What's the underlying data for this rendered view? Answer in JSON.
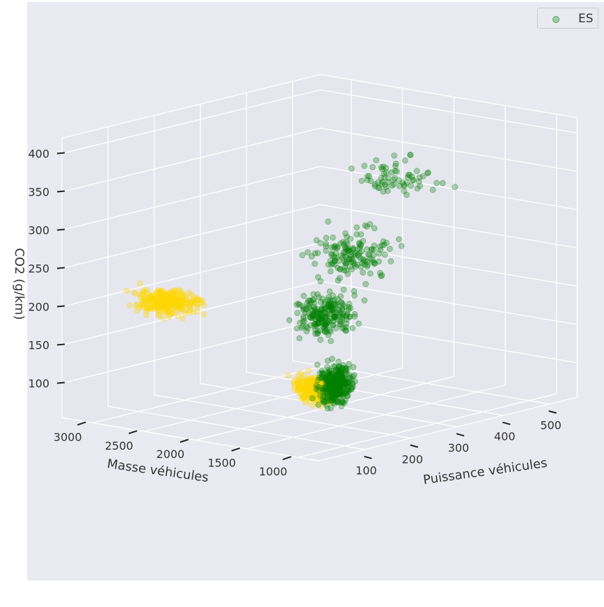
{
  "chart_data": {
    "type": "scatter",
    "projection": "3d",
    "title": "",
    "xlabel": "Puissance véhicules",
    "ylabel": "Masse véhicules",
    "zlabel": "CO2 (g/km)",
    "x_ticks": [
      "100",
      "200",
      "300",
      "400",
      "500"
    ],
    "y_ticks": [
      "1000",
      "1500",
      "2000",
      "2500",
      "3000"
    ],
    "z_ticks": [
      "100",
      "150",
      "200",
      "250",
      "300",
      "350",
      "400"
    ],
    "xlim": [
      0,
      560
    ],
    "ylim": [
      800,
      3300
    ],
    "zlim": [
      55,
      420
    ],
    "grid": true,
    "legend": {
      "placement": "top-right",
      "entries": [
        "ES"
      ]
    },
    "colors": {
      "series_green": "#008000",
      "series_yellow": "#ffd700",
      "pane": "#eaeaf2"
    },
    "series": [
      {
        "name": "ES",
        "color": "#008000",
        "alpha": 0.3,
        "clusters": [
          {
            "x": [
              80,
              150
            ],
            "y": [
              1000,
              1300
            ],
            "z": [
              80,
              180
            ],
            "count": 340
          },
          {
            "x": [
              100,
              250
            ],
            "y": [
              1200,
              1800
            ],
            "z": [
              150,
              260
            ],
            "count": 220
          },
          {
            "x": [
              200,
              380
            ],
            "y": [
              1400,
              2200
            ],
            "z": [
              200,
              320
            ],
            "count": 150
          },
          {
            "x": [
              350,
              520
            ],
            "y": [
              1600,
              2400
            ],
            "z": [
              280,
              390
            ],
            "count": 70
          }
        ]
      },
      {
        "name": "",
        "color": "#ffd700",
        "alpha": 0.3,
        "clusters": [
          {
            "x": [
              60,
              120
            ],
            "y": [
              1000,
              1500
            ],
            "z": [
              90,
              160
            ],
            "count": 280
          },
          {
            "x": [
              20,
              100
            ],
            "y": [
              2200,
              2900
            ],
            "z": [
              180,
              250
            ],
            "count": 280
          }
        ]
      }
    ]
  }
}
